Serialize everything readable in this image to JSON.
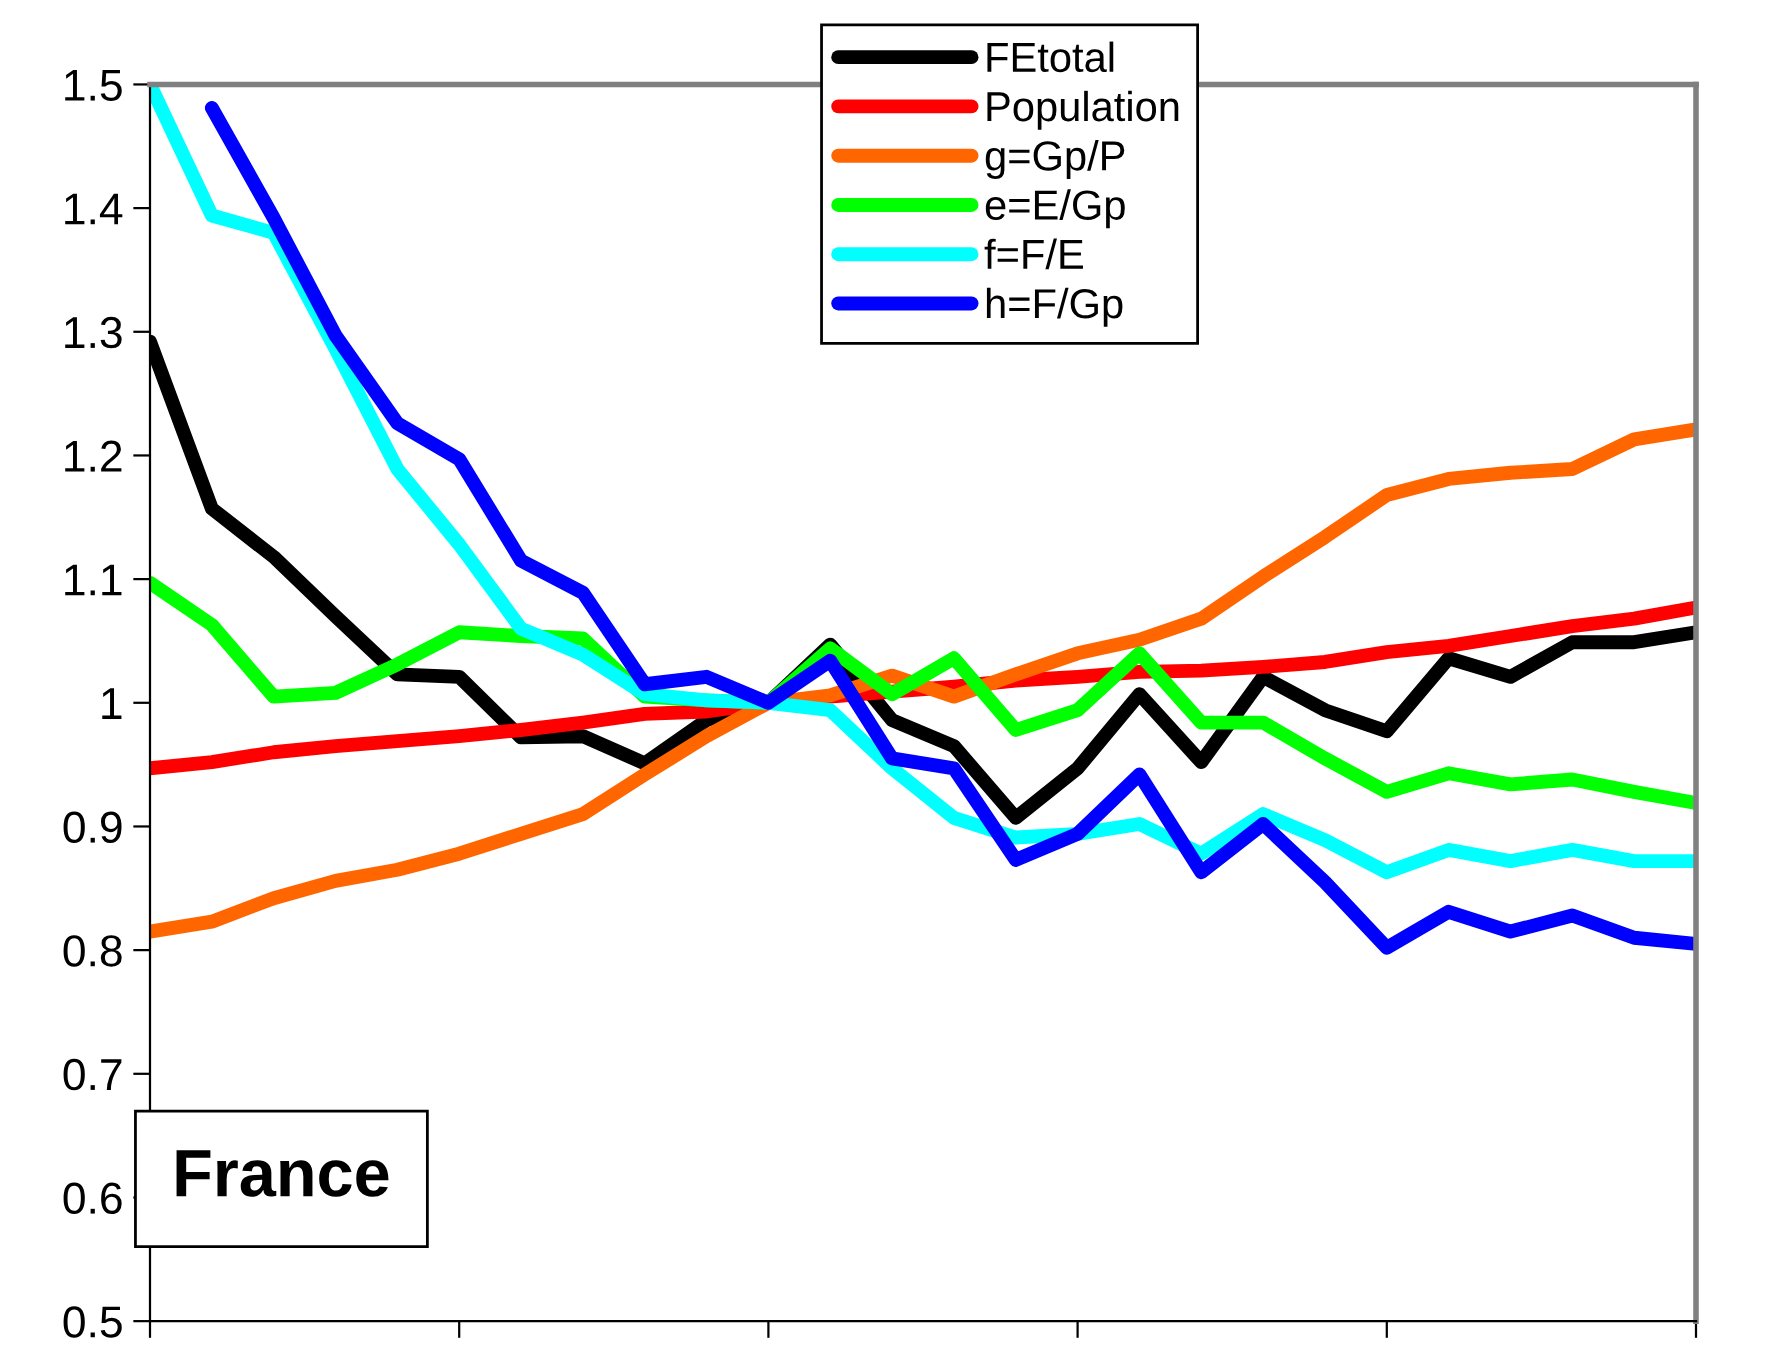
{
  "chart_data": {
    "type": "line",
    "categories": [
      null,
      null,
      null,
      null,
      null,
      null,
      null,
      null,
      null,
      null,
      null,
      null,
      null,
      null,
      null,
      null,
      null,
      null,
      null,
      null,
      null,
      null,
      null,
      null,
      null,
      null
    ],
    "series": [
      {
        "name": "FEtotal",
        "color": "#000000",
        "values": [
          1.292,
          1.157,
          1.118,
          1.07,
          1.023,
          1.021,
          0.972,
          0.973,
          0.951,
          0.986,
          1.0,
          1.047,
          0.986,
          0.965,
          0.907,
          0.947,
          1.007,
          0.952,
          1.021,
          0.994,
          0.977,
          1.036,
          1.021,
          1.049,
          1.049,
          1.057
        ]
      },
      {
        "name": "Population",
        "color": "#ff0000",
        "values": [
          0.947,
          0.952,
          0.96,
          0.965,
          0.969,
          0.973,
          0.978,
          0.984,
          0.991,
          0.993,
          1.0,
          1.005,
          1.009,
          1.013,
          1.018,
          1.021,
          1.025,
          1.026,
          1.029,
          1.033,
          1.041,
          1.046,
          1.054,
          1.062,
          1.068,
          1.077
        ]
      },
      {
        "name": "g=Gp/P",
        "color": "#ff6600",
        "values": [
          0.815,
          0.823,
          0.842,
          0.856,
          0.865,
          0.878,
          0.894,
          0.91,
          0.942,
          0.973,
          1.0,
          1.006,
          1.022,
          1.005,
          1.023,
          1.04,
          1.051,
          1.068,
          1.102,
          1.134,
          1.168,
          1.181,
          1.186,
          1.189,
          1.213,
          1.221
        ]
      },
      {
        "name": "e=E/Gp",
        "color": "#00ff00",
        "values": [
          1.097,
          1.063,
          1.005,
          1.008,
          1.031,
          1.057,
          1.054,
          1.052,
          1.005,
          1.002,
          1.0,
          1.044,
          1.007,
          1.036,
          0.978,
          0.994,
          1.04,
          0.984,
          0.984,
          0.955,
          0.928,
          0.943,
          0.934,
          0.938,
          0.928,
          0.919
        ]
      },
      {
        "name": "f=F/E",
        "color": "#00ffff",
        "values": [
          1.5,
          1.394,
          1.38,
          1.286,
          1.189,
          1.128,
          1.06,
          1.039,
          1.007,
          1.002,
          1.0,
          0.994,
          0.947,
          0.907,
          0.891,
          0.894,
          0.902,
          0.878,
          0.91,
          0.889,
          0.863,
          0.881,
          0.872,
          0.881,
          0.872,
          0.872
        ]
      },
      {
        "name": "h=F/Gp",
        "color": "#0000ff",
        "values": [
          null,
          1.481,
          1.392,
          1.297,
          1.226,
          1.197,
          1.115,
          1.089,
          1.015,
          1.021,
          1.0,
          1.034,
          0.955,
          0.947,
          0.873,
          0.894,
          0.942,
          0.863,
          0.902,
          0.855,
          0.802,
          0.831,
          0.815,
          0.828,
          0.81,
          0.805
        ]
      }
    ],
    "ylim": [
      0.5,
      1.5
    ],
    "yticks": [
      0.5,
      0.6,
      0.7,
      0.8,
      0.9,
      1,
      1.1,
      1.2,
      1.3,
      1.4,
      1.5
    ],
    "annotations": [
      "France"
    ],
    "legend": "top",
    "grid": false,
    "marker": "none",
    "line_style": "solid"
  }
}
